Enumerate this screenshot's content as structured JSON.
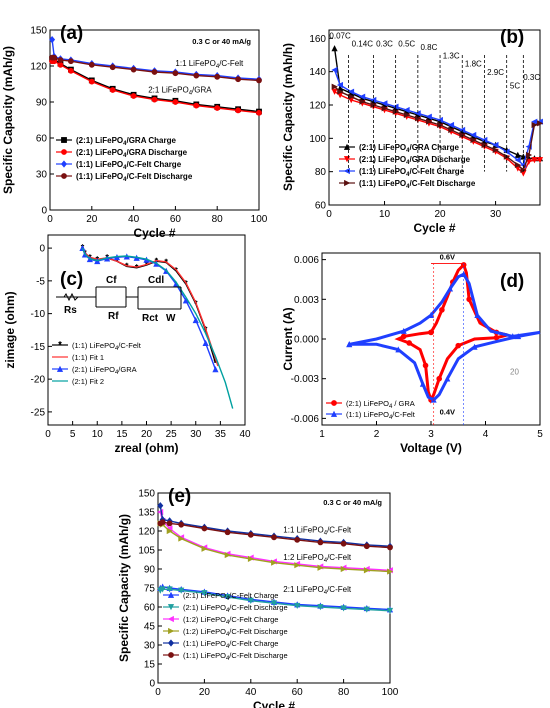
{
  "chart_data": [
    {
      "panel": "(a)",
      "type": "scatter",
      "xlabel": "Cycle #",
      "ylabel": "Specific Capacity (mAh/g)",
      "xlim": [
        0,
        100
      ],
      "ylim": [
        0,
        150
      ],
      "xticks": [
        "0",
        "20",
        "40",
        "60",
        "80",
        "100"
      ],
      "yticks": [
        "0",
        "30",
        "60",
        "90",
        "120",
        "150"
      ],
      "annotations": [
        "0.3 C or 40 mA/g",
        "1:1 LiFePO4/C-Felt",
        "2:1 LiFePO4/GRA"
      ],
      "legend": "bottom-left",
      "series": [
        {
          "name": "(2:1) LiFePO4/GRA Charge",
          "color": "#000000",
          "marker": "square",
          "x": [
            1,
            2,
            5,
            10,
            20,
            30,
            40,
            50,
            60,
            70,
            80,
            90,
            100
          ],
          "y": [
            126,
            125,
            122,
            117,
            108,
            101,
            96,
            93,
            91,
            88,
            86,
            84,
            82
          ]
        },
        {
          "name": "(2:1) LiFePO4/GRA Discharge",
          "color": "#ff0000",
          "marker": "circle",
          "x": [
            1,
            2,
            5,
            10,
            20,
            30,
            40,
            50,
            60,
            70,
            80,
            90,
            100
          ],
          "y": [
            124,
            124,
            121,
            116,
            107,
            100,
            95,
            92,
            90,
            87,
            85,
            83,
            81
          ]
        },
        {
          "name": "(1:1) LiFePO4/C-Felt Charge",
          "color": "#1f3fff",
          "marker": "diamond",
          "x": [
            1,
            2,
            5,
            10,
            20,
            30,
            40,
            50,
            60,
            70,
            80,
            90,
            100
          ],
          "y": [
            142,
            128,
            126,
            125,
            122,
            120,
            118,
            116,
            115,
            113,
            112,
            110,
            109
          ]
        },
        {
          "name": "(1:1) LiFePO4/C-Felt Discharge",
          "color": "#7a1010",
          "marker": "circle",
          "x": [
            1,
            2,
            5,
            10,
            20,
            30,
            40,
            50,
            60,
            70,
            80,
            90,
            100
          ],
          "y": [
            127,
            127,
            125,
            124,
            121,
            119,
            117,
            115,
            114,
            112,
            111,
            109,
            108
          ]
        }
      ]
    },
    {
      "panel": "(b)",
      "type": "line",
      "xlabel": "Cycle #",
      "ylabel": "Specific Capacity (mAh/h)",
      "xlim": [
        0,
        38
      ],
      "ylim": [
        60,
        165
      ],
      "xticks": [
        "0",
        "10",
        "20",
        "30"
      ],
      "yticks": [
        "60",
        "80",
        "100",
        "120",
        "140",
        "160"
      ],
      "rate_labels": [
        "0.07C",
        "0.14C",
        "0.3C",
        "0.5C",
        "0.8C",
        "1.3C",
        "1.8C",
        "2.9C",
        "5C",
        "0.3C"
      ],
      "legend": "bottom-left",
      "series": [
        {
          "name": "(2:1) LiFePO4/GRA Charge",
          "color": "#000000",
          "marker": "triangle-up",
          "x": [
            1,
            2,
            4,
            6,
            8,
            10,
            12,
            14,
            16,
            18,
            20,
            22,
            24,
            26,
            28,
            30,
            32,
            34,
            35,
            36,
            37,
            38
          ],
          "y": [
            154,
            130,
            127,
            124,
            122,
            120,
            118,
            116,
            114,
            112,
            110,
            107,
            104,
            101,
            98,
            96,
            93,
            90,
            89,
            88,
            88,
            88
          ]
        },
        {
          "name": "(2:1) LiFePO4/GRA Discharge",
          "color": "#ff0000",
          "marker": "triangle-down",
          "x": [
            1,
            2,
            4,
            6,
            8,
            10,
            12,
            14,
            16,
            18,
            20,
            22,
            24,
            26,
            28,
            30,
            32,
            34,
            35,
            36,
            37,
            38
          ],
          "y": [
            128,
            126,
            123,
            121,
            119,
            117,
            115,
            113,
            111,
            109,
            107,
            104,
            101,
            98,
            95,
            92,
            88,
            82,
            79,
            86,
            87,
            87
          ]
        },
        {
          "name": "(1:1) LiFePO4/C-Felt Charge",
          "color": "#1f3fff",
          "marker": "triangle-left",
          "x": [
            1,
            2,
            4,
            6,
            8,
            10,
            12,
            14,
            16,
            18,
            20,
            22,
            24,
            26,
            28,
            30,
            32,
            34,
            35,
            36,
            37,
            38
          ],
          "y": [
            141,
            132,
            128,
            125,
            123,
            121,
            119,
            117,
            115,
            113,
            111,
            108,
            105,
            102,
            99,
            96,
            92,
            87,
            84,
            95,
            110,
            110
          ]
        },
        {
          "name": "(1:1) LiFePO4/C-Felt Discharge",
          "color": "#5a1010",
          "marker": "triangle-right",
          "x": [
            1,
            2,
            4,
            6,
            8,
            10,
            12,
            14,
            16,
            18,
            20,
            22,
            24,
            26,
            28,
            30,
            32,
            34,
            35,
            36,
            37,
            38
          ],
          "y": [
            131,
            128,
            125,
            122,
            120,
            118,
            116,
            114,
            112,
            110,
            108,
            105,
            102,
            99,
            96,
            93,
            89,
            84,
            81,
            90,
            108,
            109
          ]
        }
      ]
    },
    {
      "panel": "(c)",
      "type": "line",
      "xlabel": "zreal (ohm)",
      "ylabel": "zimage (ohm)",
      "xlim": [
        0,
        40
      ],
      "ylim": [
        -27,
        2
      ],
      "xticks": [
        "0",
        "5",
        "10",
        "15",
        "20",
        "25",
        "30",
        "35",
        "40"
      ],
      "yticks": [
        "-25",
        "-20",
        "-15",
        "-10",
        "-5",
        "0"
      ],
      "circuit_labels": [
        "Rs",
        "Cf",
        "Rf",
        "Cdl",
        "Rct",
        "W"
      ],
      "legend": "middle-left",
      "series": [
        {
          "name": "(1:1) LiFePO4/C-Felt",
          "color": "#000000",
          "marker": "star",
          "x": [
            7,
            7.5,
            8.5,
            10,
            12,
            14,
            16,
            18,
            20,
            22,
            24,
            26,
            28,
            30,
            32,
            34
          ],
          "y": [
            0,
            -0.8,
            -1.5,
            -1.8,
            -1.5,
            -2.0,
            -2.8,
            -3.0,
            -2.6,
            -2.0,
            -2.2,
            -3.5,
            -5.5,
            -8.5,
            -12.5,
            -17.5
          ]
        },
        {
          "name": "(1:1) Fit 1",
          "color": "#ff3030",
          "marker": "none",
          "x": [
            7,
            7.5,
            8.5,
            10,
            12,
            14,
            16,
            18,
            20,
            22,
            24,
            26,
            28,
            30,
            32,
            34.5
          ],
          "y": [
            0,
            -0.7,
            -1.4,
            -1.7,
            -1.5,
            -2.0,
            -2.7,
            -2.9,
            -2.5,
            -1.9,
            -2.1,
            -3.3,
            -5.3,
            -8.3,
            -12.3,
            -18
          ]
        },
        {
          "name": "(2:1) LiFePO4/GRA",
          "color": "#1f3fff",
          "marker": "triangle-up",
          "x": [
            7,
            7.5,
            8.5,
            10,
            12,
            14,
            16,
            18,
            20,
            22,
            24,
            26,
            28,
            30,
            32,
            34
          ],
          "y": [
            0,
            -1.0,
            -1.7,
            -2.0,
            -1.6,
            -1.4,
            -1.3,
            -1.5,
            -1.8,
            -2.4,
            -3.5,
            -5.5,
            -8.0,
            -11.0,
            -14.5,
            -18.5
          ]
        },
        {
          "name": "(2:1) Fit 2",
          "color": "#00a0a0",
          "marker": "none",
          "x": [
            7,
            7.5,
            8.5,
            10,
            12,
            14,
            16,
            18,
            20,
            22,
            24,
            26,
            28,
            30,
            32,
            34,
            36,
            37.5
          ],
          "y": [
            0,
            -0.9,
            -1.6,
            -1.9,
            -1.5,
            -1.3,
            -1.2,
            -1.4,
            -1.7,
            -2.3,
            -3.4,
            -5.2,
            -7.5,
            -10.0,
            -13.0,
            -16.5,
            -20.5,
            -24.5
          ]
        }
      ]
    },
    {
      "panel": "(d)",
      "type": "line",
      "xlabel": "Voltage (V)",
      "ylabel": "Current (A)",
      "xlim": [
        1,
        5
      ],
      "ylim": [
        -0.0065,
        0.0065
      ],
      "xticks": [
        "1",
        "2",
        "3",
        "4",
        "5"
      ],
      "yticks": [
        "-0.006",
        "-0.003",
        "0.000",
        "0.003",
        "0.006"
      ],
      "annotations": [
        "0.6V",
        "0.4V",
        "20"
      ],
      "legend": "bottom-left",
      "series": [
        {
          "name": "(2:1) LiFePO4 / GRA",
          "color": "#ff0000",
          "marker": "circle",
          "x": [
            3.0,
            3.1,
            3.2,
            3.3,
            3.4,
            3.5,
            3.6,
            3.65,
            3.7,
            3.9,
            4.2,
            4.4,
            4.2,
            3.8,
            3.5,
            3.3,
            3.15,
            3.05,
            3.0,
            2.95,
            2.9,
            2.8,
            2.6,
            2.4,
            2.5,
            2.8,
            3.0
          ],
          "y": [
            0.0005,
            0.0012,
            0.0022,
            0.0032,
            0.0043,
            0.0052,
            0.0056,
            0.005,
            0.003,
            0.0012,
            0.0005,
            0.0003,
            0.0001,
            0.0,
            -0.0005,
            -0.0015,
            -0.003,
            -0.0042,
            -0.0046,
            -0.004,
            -0.002,
            -0.0008,
            -0.0003,
            0.0,
            0.0002,
            0.0004,
            0.0005
          ]
        },
        {
          "name": "(1:1) LiFePO4/C-Felt",
          "color": "#1f3fff",
          "marker": "triangle-up",
          "x": [
            1.5,
            2.0,
            2.5,
            2.8,
            3.0,
            3.2,
            3.35,
            3.5,
            3.6,
            3.7,
            3.85,
            4.1,
            4.5,
            5.0,
            4.6,
            4.2,
            3.8,
            3.5,
            3.3,
            3.15,
            3.05,
            2.95,
            2.85,
            2.7,
            2.4,
            2.0,
            1.5
          ],
          "y": [
            -0.0004,
            0.0,
            0.0006,
            0.0012,
            0.0018,
            0.0028,
            0.0038,
            0.0047,
            0.0049,
            0.0042,
            0.0018,
            0.0006,
            0.0002,
            0.0005,
            0.0002,
            -0.0002,
            -0.0006,
            -0.0015,
            -0.003,
            -0.0042,
            -0.0046,
            -0.0044,
            -0.0034,
            -0.0018,
            -0.0008,
            -0.0004,
            -0.0004
          ]
        }
      ]
    },
    {
      "panel": "(e)",
      "type": "scatter",
      "xlabel": "Cycle #",
      "ylabel": "Specific Capacity (mAh/g)",
      "xlim": [
        0,
        100
      ],
      "ylim": [
        0,
        150
      ],
      "xticks": [
        "0",
        "20",
        "40",
        "60",
        "80",
        "100"
      ],
      "yticks": [
        "0",
        "15",
        "30",
        "45",
        "60",
        "75",
        "90",
        "105",
        "120",
        "135",
        "150"
      ],
      "annotations": [
        "0.3 C or 40 mA/g",
        "1:1 LiFePO4/C-Felt",
        "1:2 LiFePO4/C-Felt",
        "2:1 LiFePO4/C-Felt"
      ],
      "legend": "bottom-left",
      "series": [
        {
          "name": "(2:1) LiFePO4/C-Felt Charge",
          "color": "#1f3fff",
          "marker": "triangle-up",
          "x": [
            1,
            2,
            5,
            10,
            20,
            30,
            40,
            50,
            60,
            70,
            80,
            90,
            100
          ],
          "y": [
            75,
            76,
            75,
            74,
            72,
            69,
            66,
            64,
            62,
            61,
            60,
            59,
            58
          ]
        },
        {
          "name": "(2:1) LiFePO4/C-Felt Discharge",
          "color": "#20a0a0",
          "marker": "triangle-down",
          "x": [
            1,
            2,
            5,
            10,
            20,
            30,
            40,
            50,
            60,
            70,
            80,
            90,
            100
          ],
          "y": [
            73,
            74,
            74,
            73,
            71,
            68,
            65,
            63,
            61,
            60,
            59,
            58,
            57
          ]
        },
        {
          "name": "(1:2) LiFePO4/C-Felt Charge",
          "color": "#ff30ff",
          "marker": "triangle-left",
          "x": [
            1,
            2,
            5,
            10,
            20,
            30,
            40,
            50,
            60,
            70,
            80,
            90,
            100
          ],
          "y": [
            135,
            128,
            122,
            115,
            107,
            102,
            99,
            96,
            94,
            92,
            91,
            90,
            89
          ]
        },
        {
          "name": "(1:2) LiFePO4/C-Felt Discharge",
          "color": "#a0a020",
          "marker": "triangle-right",
          "x": [
            1,
            2,
            5,
            10,
            20,
            30,
            40,
            50,
            60,
            70,
            80,
            90,
            100
          ],
          "y": [
            126,
            125,
            120,
            114,
            106,
            101,
            98,
            95,
            93,
            91,
            90,
            89,
            88
          ]
        },
        {
          "name": "(1:1) LiFePO4/C-Felt Charge",
          "color": "#1030a0",
          "marker": "diamond",
          "x": [
            1,
            2,
            5,
            10,
            20,
            30,
            40,
            50,
            60,
            70,
            80,
            90,
            100
          ],
          "y": [
            140,
            129,
            128,
            126,
            123,
            120,
            118,
            116,
            114,
            112,
            111,
            109,
            108
          ]
        },
        {
          "name": "(1:1) LiFePO4/C-Felt Discharge",
          "color": "#7a1010",
          "marker": "circle",
          "x": [
            1,
            2,
            5,
            10,
            20,
            30,
            40,
            50,
            60,
            70,
            80,
            90,
            100
          ],
          "y": [
            126,
            127,
            126,
            125,
            122,
            119,
            117,
            115,
            113,
            111,
            110,
            108,
            107
          ]
        }
      ]
    }
  ]
}
